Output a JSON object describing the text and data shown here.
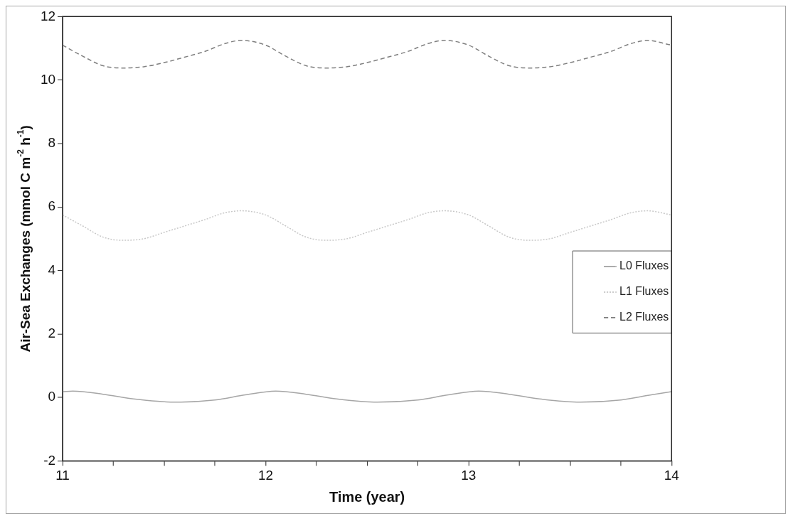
{
  "chart_data": {
    "type": "line",
    "xlabel": "Time (year)",
    "ylabel": "Air-Sea Exchanges (mmol C m$^{-2}$ h$^{-1}$)",
    "xlim": [
      11,
      14
    ],
    "ylim": [
      -2,
      12
    ],
    "xticks": [
      11,
      {
        "value": 11.25,
        "label": null
      },
      {
        "value": 11.5,
        "label": null
      },
      {
        "value": 11.75,
        "label": null
      },
      12,
      {
        "value": 12.25,
        "label": null
      },
      {
        "value": 12.5,
        "label": null
      },
      {
        "value": 12.75,
        "label": null
      },
      13,
      {
        "value": 13.25,
        "label": null
      },
      {
        "value": 13.5,
        "label": null
      },
      {
        "value": 13.75,
        "label": null
      },
      14
    ],
    "yticks": [
      -2,
      0,
      2,
      4,
      6,
      8,
      10,
      12
    ],
    "grid": false,
    "legend": "right",
    "marker": "none",
    "series": [
      {
        "name": "L0 Fluxes",
        "color": "#a6a6a6",
        "line_style": "solid",
        "x": [
          11,
          11.05,
          11.2,
          11.35,
          11.55,
          11.75,
          11.9,
          12.05,
          12.2,
          12.35,
          12.55,
          12.75,
          12.9,
          13.05,
          13.2,
          13.35,
          13.55,
          13.75,
          13.9,
          14
        ],
        "values": [
          0.18,
          0.2,
          0.1,
          -0.05,
          -0.15,
          -0.08,
          0.08,
          0.2,
          0.1,
          -0.05,
          -0.15,
          -0.08,
          0.08,
          0.2,
          0.1,
          -0.05,
          -0.15,
          -0.08,
          0.08,
          0.18
        ]
      },
      {
        "name": "L1 Fluxes",
        "color": "#c8c8c8",
        "line_style": "dotted",
        "x": [
          11,
          11.1,
          11.2,
          11.3,
          11.4,
          11.5,
          11.6,
          11.7,
          11.8,
          11.88,
          12,
          12.1,
          12.2,
          12.3,
          12.4,
          12.5,
          12.6,
          12.7,
          12.8,
          12.88,
          13,
          13.1,
          13.2,
          13.3,
          13.4,
          13.5,
          13.6,
          13.7,
          13.8,
          13.88,
          14
        ],
        "values": [
          5.75,
          5.4,
          5.05,
          4.95,
          5.0,
          5.2,
          5.4,
          5.6,
          5.82,
          5.88,
          5.75,
          5.4,
          5.05,
          4.95,
          5.0,
          5.2,
          5.4,
          5.6,
          5.82,
          5.88,
          5.75,
          5.4,
          5.05,
          4.95,
          5.0,
          5.2,
          5.4,
          5.6,
          5.82,
          5.88,
          5.75
        ]
      },
      {
        "name": "L2 Fluxes",
        "color": "#7f7f7f",
        "line_style": "dashed",
        "x": [
          11,
          11.1,
          11.2,
          11.3,
          11.4,
          11.5,
          11.6,
          11.7,
          11.8,
          11.88,
          12,
          12.1,
          12.2,
          12.3,
          12.4,
          12.5,
          12.6,
          12.7,
          12.8,
          12.88,
          13,
          13.1,
          13.2,
          13.3,
          13.4,
          13.5,
          13.6,
          13.7,
          13.8,
          13.88,
          14
        ],
        "values": [
          11.1,
          10.75,
          10.45,
          10.38,
          10.42,
          10.55,
          10.72,
          10.9,
          11.15,
          11.25,
          11.1,
          10.75,
          10.45,
          10.38,
          10.42,
          10.55,
          10.72,
          10.9,
          11.15,
          11.25,
          11.1,
          10.75,
          10.45,
          10.38,
          10.42,
          10.55,
          10.72,
          10.9,
          11.15,
          11.25,
          11.1
        ]
      }
    ]
  }
}
